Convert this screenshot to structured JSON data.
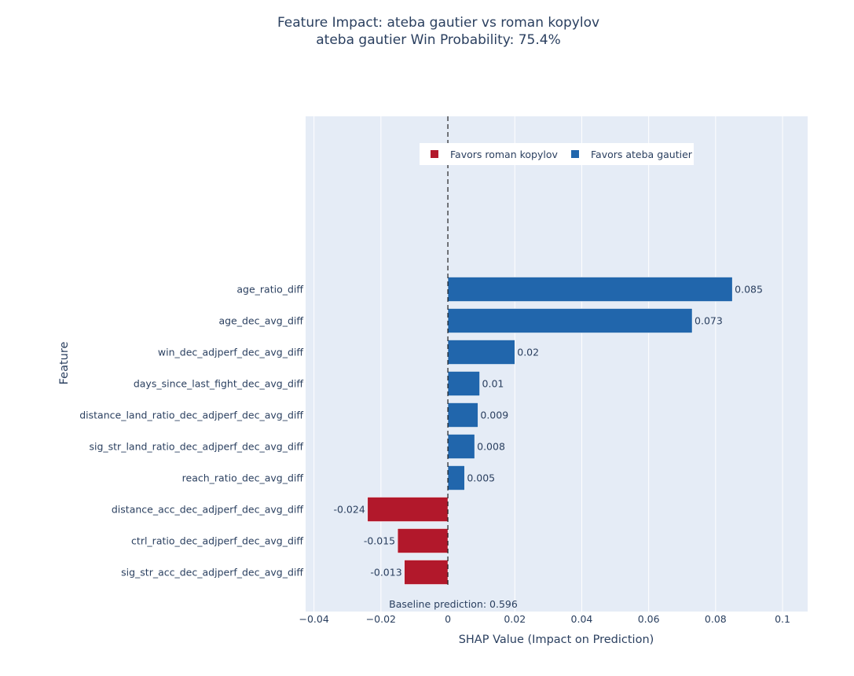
{
  "chart_data": {
    "type": "bar",
    "orientation": "horizontal",
    "title": "Feature Impact: ateba gautier vs roman kopylov",
    "subtitle": "ateba gautier Win Probability: 75.4%",
    "xlabel": "SHAP Value (Impact on Prediction)",
    "ylabel": "Feature",
    "xlim": [
      -0.0425,
      0.1075
    ],
    "xticks": [
      -0.04,
      -0.02,
      0,
      0.02,
      0.04,
      0.06,
      0.08,
      0.1
    ],
    "xtick_labels": [
      "−0.04",
      "−0.02",
      "0",
      "0.02",
      "0.04",
      "0.06",
      "0.08",
      "0.1"
    ],
    "grid": true,
    "legend_position": "top-center",
    "legend": [
      {
        "name": "Favors roman kopylov",
        "color": "#b2182b"
      },
      {
        "name": "Favors ateba gautier",
        "color": "#2166ac"
      }
    ],
    "bars": [
      {
        "feature": "age_ratio_diff",
        "value": 0.085,
        "label": "0.085"
      },
      {
        "feature": "age_dec_avg_diff",
        "value": 0.073,
        "label": "0.073"
      },
      {
        "feature": "win_dec_adjperf_dec_avg_diff",
        "value": 0.02,
        "label": "0.02"
      },
      {
        "feature": "days_since_last_fight_dec_avg_diff",
        "value": 0.0095,
        "label": "0.01"
      },
      {
        "feature": "distance_land_ratio_dec_adjperf_dec_avg_diff",
        "value": 0.009,
        "label": "0.009"
      },
      {
        "feature": "sig_str_land_ratio_dec_adjperf_dec_avg_diff",
        "value": 0.008,
        "label": "0.008"
      },
      {
        "feature": "reach_ratio_dec_avg_diff",
        "value": 0.005,
        "label": "0.005"
      },
      {
        "feature": "distance_acc_dec_adjperf_dec_avg_diff",
        "value": -0.024,
        "label": "-0.024"
      },
      {
        "feature": "ctrl_ratio_dec_adjperf_dec_avg_diff",
        "value": -0.015,
        "label": "-0.015"
      },
      {
        "feature": "sig_str_acc_dec_adjperf_dec_avg_diff",
        "value": -0.013,
        "label": "-0.013"
      }
    ],
    "annotation": "Baseline prediction: 0.596",
    "colors": {
      "positive": "#2166ac",
      "negative": "#b2182b",
      "plot_bg": "#e5ecf6",
      "grid": "#ffffff",
      "text": "#2a3f5f"
    }
  }
}
